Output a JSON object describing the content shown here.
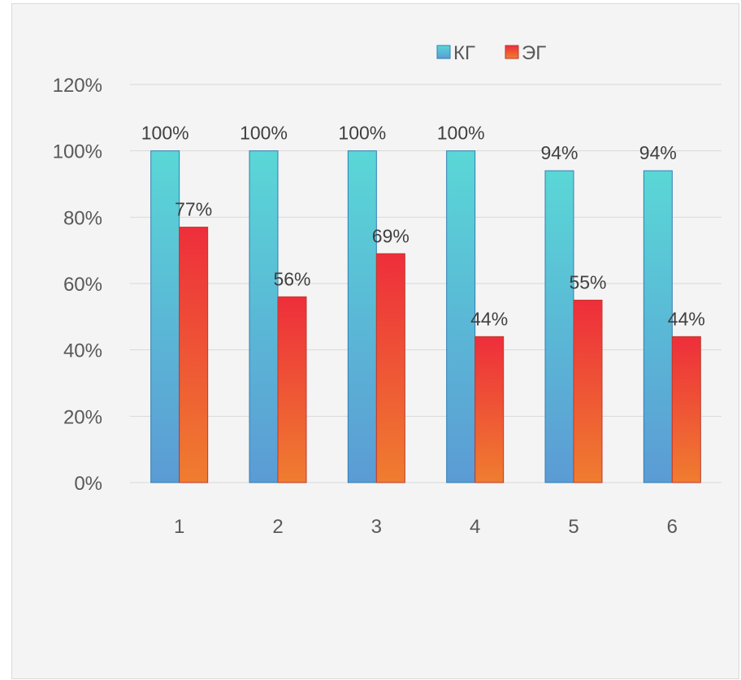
{
  "chart_data": {
    "type": "bar",
    "categories": [
      "1",
      "2",
      "3",
      "4",
      "5",
      "6"
    ],
    "series": [
      {
        "name": "КГ",
        "values": [
          100,
          100,
          100,
          100,
          94,
          94
        ],
        "labels": [
          "100%",
          "100%",
          "100%",
          "100%",
          "94%",
          "94%"
        ]
      },
      {
        "name": "ЭГ",
        "values": [
          77,
          56,
          69,
          44,
          55,
          44
        ],
        "labels": [
          "77%",
          "56%",
          "69%",
          "44%",
          "55%",
          "44%"
        ]
      }
    ],
    "ylim": [
      0,
      120
    ],
    "yticks": [
      0,
      20,
      40,
      60,
      80,
      100,
      120
    ],
    "ytick_labels": [
      "0%",
      "20%",
      "40%",
      "60%",
      "80%",
      "100%",
      "120%"
    ],
    "grid": true,
    "legend_position": "top-right",
    "colors": {
      "kg_top": "#5ad7d6",
      "kg_bottom": "#5b9bd5",
      "kg_edge": "#2f7fb3",
      "eg_top": "#ee2e3b",
      "eg_bottom": "#ef7d2f",
      "eg_edge": "#c0392b",
      "grid": "#d9d9d9",
      "background": "#f4f4f4"
    }
  }
}
